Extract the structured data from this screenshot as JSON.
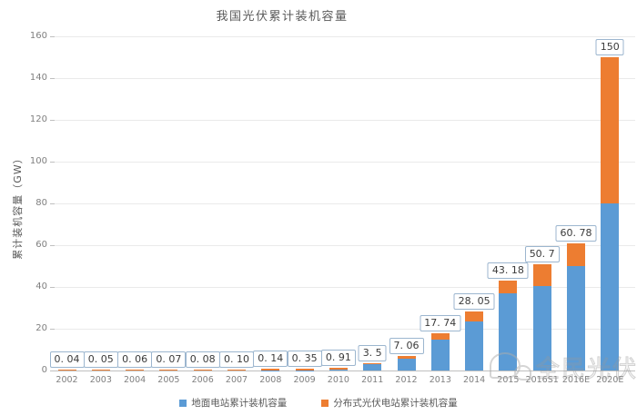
{
  "title": "我国光伏累计装机容量",
  "y_axis": {
    "label": "累计装机容量（GW）",
    "unit": "GW",
    "ticks": [
      "0",
      "20",
      "40",
      "60",
      "80",
      "100",
      "120",
      "140",
      "160"
    ]
  },
  "legend": {
    "items": [
      {
        "label": "地面电站累计装机容量",
        "color": "#5B9BD5"
      },
      {
        "label": "分布式光伏电站累计装机容量",
        "color": "#ED7D31"
      }
    ]
  },
  "watermark": {
    "text": "全民光伏"
  },
  "chart_data": {
    "type": "bar",
    "stacked": true,
    "title": "我国光伏累计装机容量",
    "ylabel": "累计装机容量（GW）",
    "ylim": [
      0,
      160
    ],
    "y_tick_step": 20,
    "grid": true,
    "legend_position": "bottom",
    "categories": [
      "2002",
      "2003",
      "2004",
      "2005",
      "2006",
      "2007",
      "2008",
      "2009",
      "2010",
      "2011",
      "2012",
      "2013",
      "2014",
      "2015",
      "2016S1",
      "2016E",
      "2020E"
    ],
    "totals": [
      0.04,
      0.05,
      0.06,
      0.07,
      0.08,
      0.1,
      0.14,
      0.35,
      0.91,
      3.5,
      7.06,
      17.74,
      28.05,
      43.18,
      50.7,
      60.78,
      150
    ],
    "total_labels": [
      "0. 04",
      "0. 05",
      "0. 06",
      "0. 07",
      "0. 08",
      "0. 10",
      "0. 14",
      "0. 35",
      "0. 91",
      "3. 5",
      "7. 06",
      "17. 74",
      "28. 05",
      "43. 18",
      "50. 7",
      "60. 78",
      "150"
    ],
    "series": [
      {
        "name": "地面电站累计装机容量",
        "color": "#5B9BD5",
        "values": [
          0.01,
          0.01,
          0.02,
          0.02,
          0.03,
          0.03,
          0.05,
          0.2,
          0.6,
          2.9,
          5.8,
          14.8,
          23.4,
          37.1,
          40.4,
          50.0,
          80.0
        ]
      },
      {
        "name": "分布式光伏电站累计装机容量",
        "color": "#ED7D31",
        "values": [
          0.03,
          0.04,
          0.04,
          0.05,
          0.05,
          0.07,
          0.09,
          0.15,
          0.31,
          0.6,
          1.26,
          2.94,
          4.65,
          6.08,
          10.3,
          10.78,
          70.0
        ]
      }
    ]
  }
}
